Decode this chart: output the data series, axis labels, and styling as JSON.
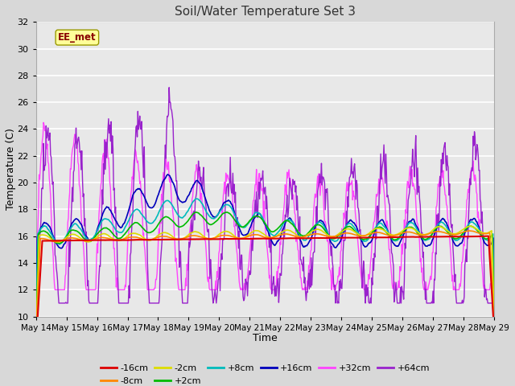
{
  "title": "Soil/Water Temperature Set 3",
  "xlabel": "Time",
  "ylabel": "Temperature (C)",
  "ylim": [
    10,
    32
  ],
  "yticks": [
    10,
    12,
    14,
    16,
    18,
    20,
    22,
    24,
    26,
    28,
    30,
    32
  ],
  "watermark": "EE_met",
  "series_colors": {
    "-16cm": "#dd0000",
    "-8cm": "#ff8800",
    "-2cm": "#dddd00",
    "+2cm": "#00bb00",
    "+8cm": "#00bbbb",
    "+16cm": "#0000bb",
    "+32cm": "#ff44ff",
    "+64cm": "#9922cc"
  },
  "xtick_labels": [
    "May 14",
    "May 15",
    "May 16",
    "May 17",
    "May 18",
    "May 19",
    "May 20",
    "May 21",
    "May 22",
    "May 23",
    "May 24",
    "May 25",
    "May 26",
    "May 27",
    "May 28",
    "May 29"
  ],
  "xtick_positions": [
    0,
    1,
    2,
    3,
    4,
    5,
    6,
    7,
    8,
    9,
    10,
    11,
    12,
    13,
    14,
    15
  ],
  "figsize": [
    6.4,
    4.8
  ],
  "dpi": 100
}
